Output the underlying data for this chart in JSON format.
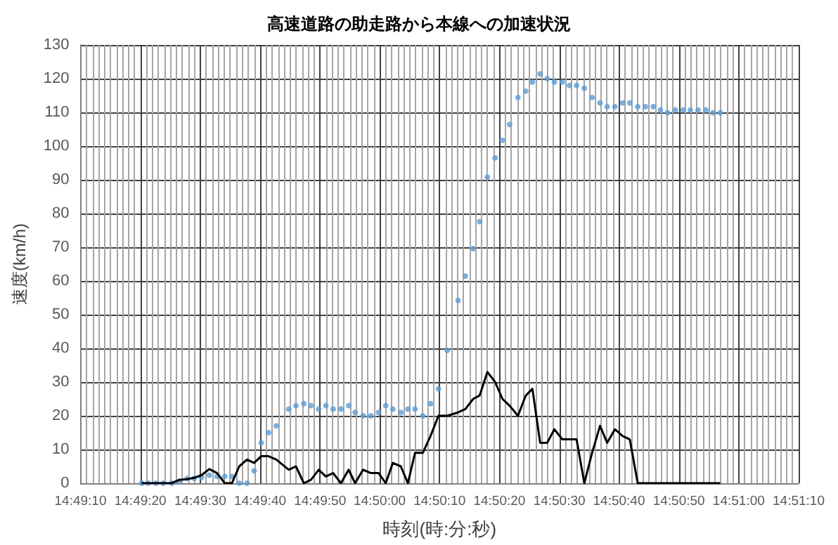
{
  "chart_data": {
    "type": "line",
    "title": "高速道路の助走路から本線への加速状況",
    "xlabel": "時刻(時:分:秒)",
    "ylabel": "速度(km/h)",
    "x": [
      14.82228,
      14.82258,
      14.82294,
      14.82328,
      14.82367,
      14.82403,
      14.82439,
      14.82472,
      14.82506,
      14.82542,
      14.82578,
      14.82614,
      14.82647,
      14.82681,
      14.82717,
      14.8275,
      14.82783,
      14.82817,
      14.82853,
      14.82911,
      14.82944,
      14.82981,
      14.83014,
      14.8305,
      14.83083,
      14.83117,
      14.83153,
      14.83189,
      14.83219,
      14.83256,
      14.83292,
      14.83328,
      14.83361,
      14.83394,
      14.83431,
      14.83464,
      14.83497,
      14.83533,
      14.83569,
      14.83606,
      14.83647,
      14.83697,
      14.83731,
      14.83767,
      14.83797,
      14.83833,
      14.83869,
      14.83903,
      14.83936,
      14.83975,
      14.84011,
      14.84042,
      14.84078,
      14.84111,
      14.84144,
      14.84181,
      14.84214,
      14.84247,
      14.84283,
      14.84319,
      14.84356,
      14.84389,
      14.84425,
      14.84461,
      14.84494,
      14.84531,
      14.84567,
      14.84603,
      14.84636,
      14.84669,
      14.84706,
      14.84742,
      14.84775,
      14.84811,
      14.84847,
      14.84881,
      14.84914
    ],
    "series": [
      {
        "type": "scatter",
        "color": "#5b9bd5",
        "values": [
          0,
          0,
          0,
          0,
          0,
          0.5,
          1.4,
          1.4,
          1.7,
          2.4,
          2,
          2,
          2,
          0,
          0,
          3.7,
          12,
          15,
          17,
          22,
          23,
          23.6,
          23,
          22,
          23,
          22,
          22,
          23,
          21,
          20,
          20,
          21,
          23,
          22,
          21,
          22,
          22,
          20,
          23.6,
          28,
          39.4,
          54.2,
          61.4,
          69.6,
          77.6,
          90.8,
          96.5,
          101.7,
          106.4,
          114.4,
          116.3,
          119,
          121.4,
          120,
          119,
          119,
          118,
          118,
          117.2,
          114.4,
          112.8,
          111.7,
          111.7,
          112.8,
          112.8,
          111.7,
          111.7,
          111.7,
          110.7,
          109.9,
          110.7,
          110.7,
          110.7,
          110.7,
          110.7,
          109.9,
          109.9
        ]
      },
      {
        "color": "#000000",
        "values": [
          0,
          0,
          0,
          0,
          0,
          1,
          1.2,
          1.6,
          2.4,
          4.2,
          3,
          0,
          0,
          5,
          7,
          6,
          8,
          8,
          7,
          4,
          5,
          0,
          1,
          4,
          2,
          3,
          0,
          4,
          0,
          4,
          3,
          3,
          0,
          6,
          5,
          0,
          9,
          9,
          14,
          20,
          20,
          21,
          22,
          25,
          26,
          33,
          30,
          25,
          23,
          20,
          26,
          28,
          12,
          12,
          16,
          13,
          13,
          13,
          0,
          9,
          17,
          12,
          16,
          14,
          13,
          0,
          0,
          0,
          0,
          0,
          0,
          0,
          0,
          0,
          0,
          0,
          0
        ]
      }
    ],
    "xlim": [
      14.81944,
      14.85278
    ],
    "xticks": [
      {
        "value": 14.81944,
        "label": "14:49:10"
      },
      {
        "value": 14.82222,
        "label": "14:49:20"
      },
      {
        "value": 14.825,
        "label": "14:49:30"
      },
      {
        "value": 14.82778,
        "label": "14:49:40"
      },
      {
        "value": 14.83056,
        "label": "14:49:50"
      },
      {
        "value": 14.83333,
        "label": "14:50:00"
      },
      {
        "value": 14.83611,
        "label": "14:50:10"
      },
      {
        "value": 14.83889,
        "label": "14:50:20"
      },
      {
        "value": 14.84167,
        "label": "14:50:30"
      },
      {
        "value": 14.84444,
        "label": "14:50:40"
      },
      {
        "value": 14.84722,
        "label": "14:50:50"
      },
      {
        "value": 14.85,
        "label": "14:51:00"
      },
      {
        "value": 14.85278,
        "label": "14:51:10"
      }
    ],
    "ylim": [
      0,
      130
    ],
    "yticks": [
      0,
      10,
      20,
      30,
      40,
      50,
      60,
      70,
      80,
      90,
      100,
      110,
      120,
      130
    ],
    "grid": true
  }
}
